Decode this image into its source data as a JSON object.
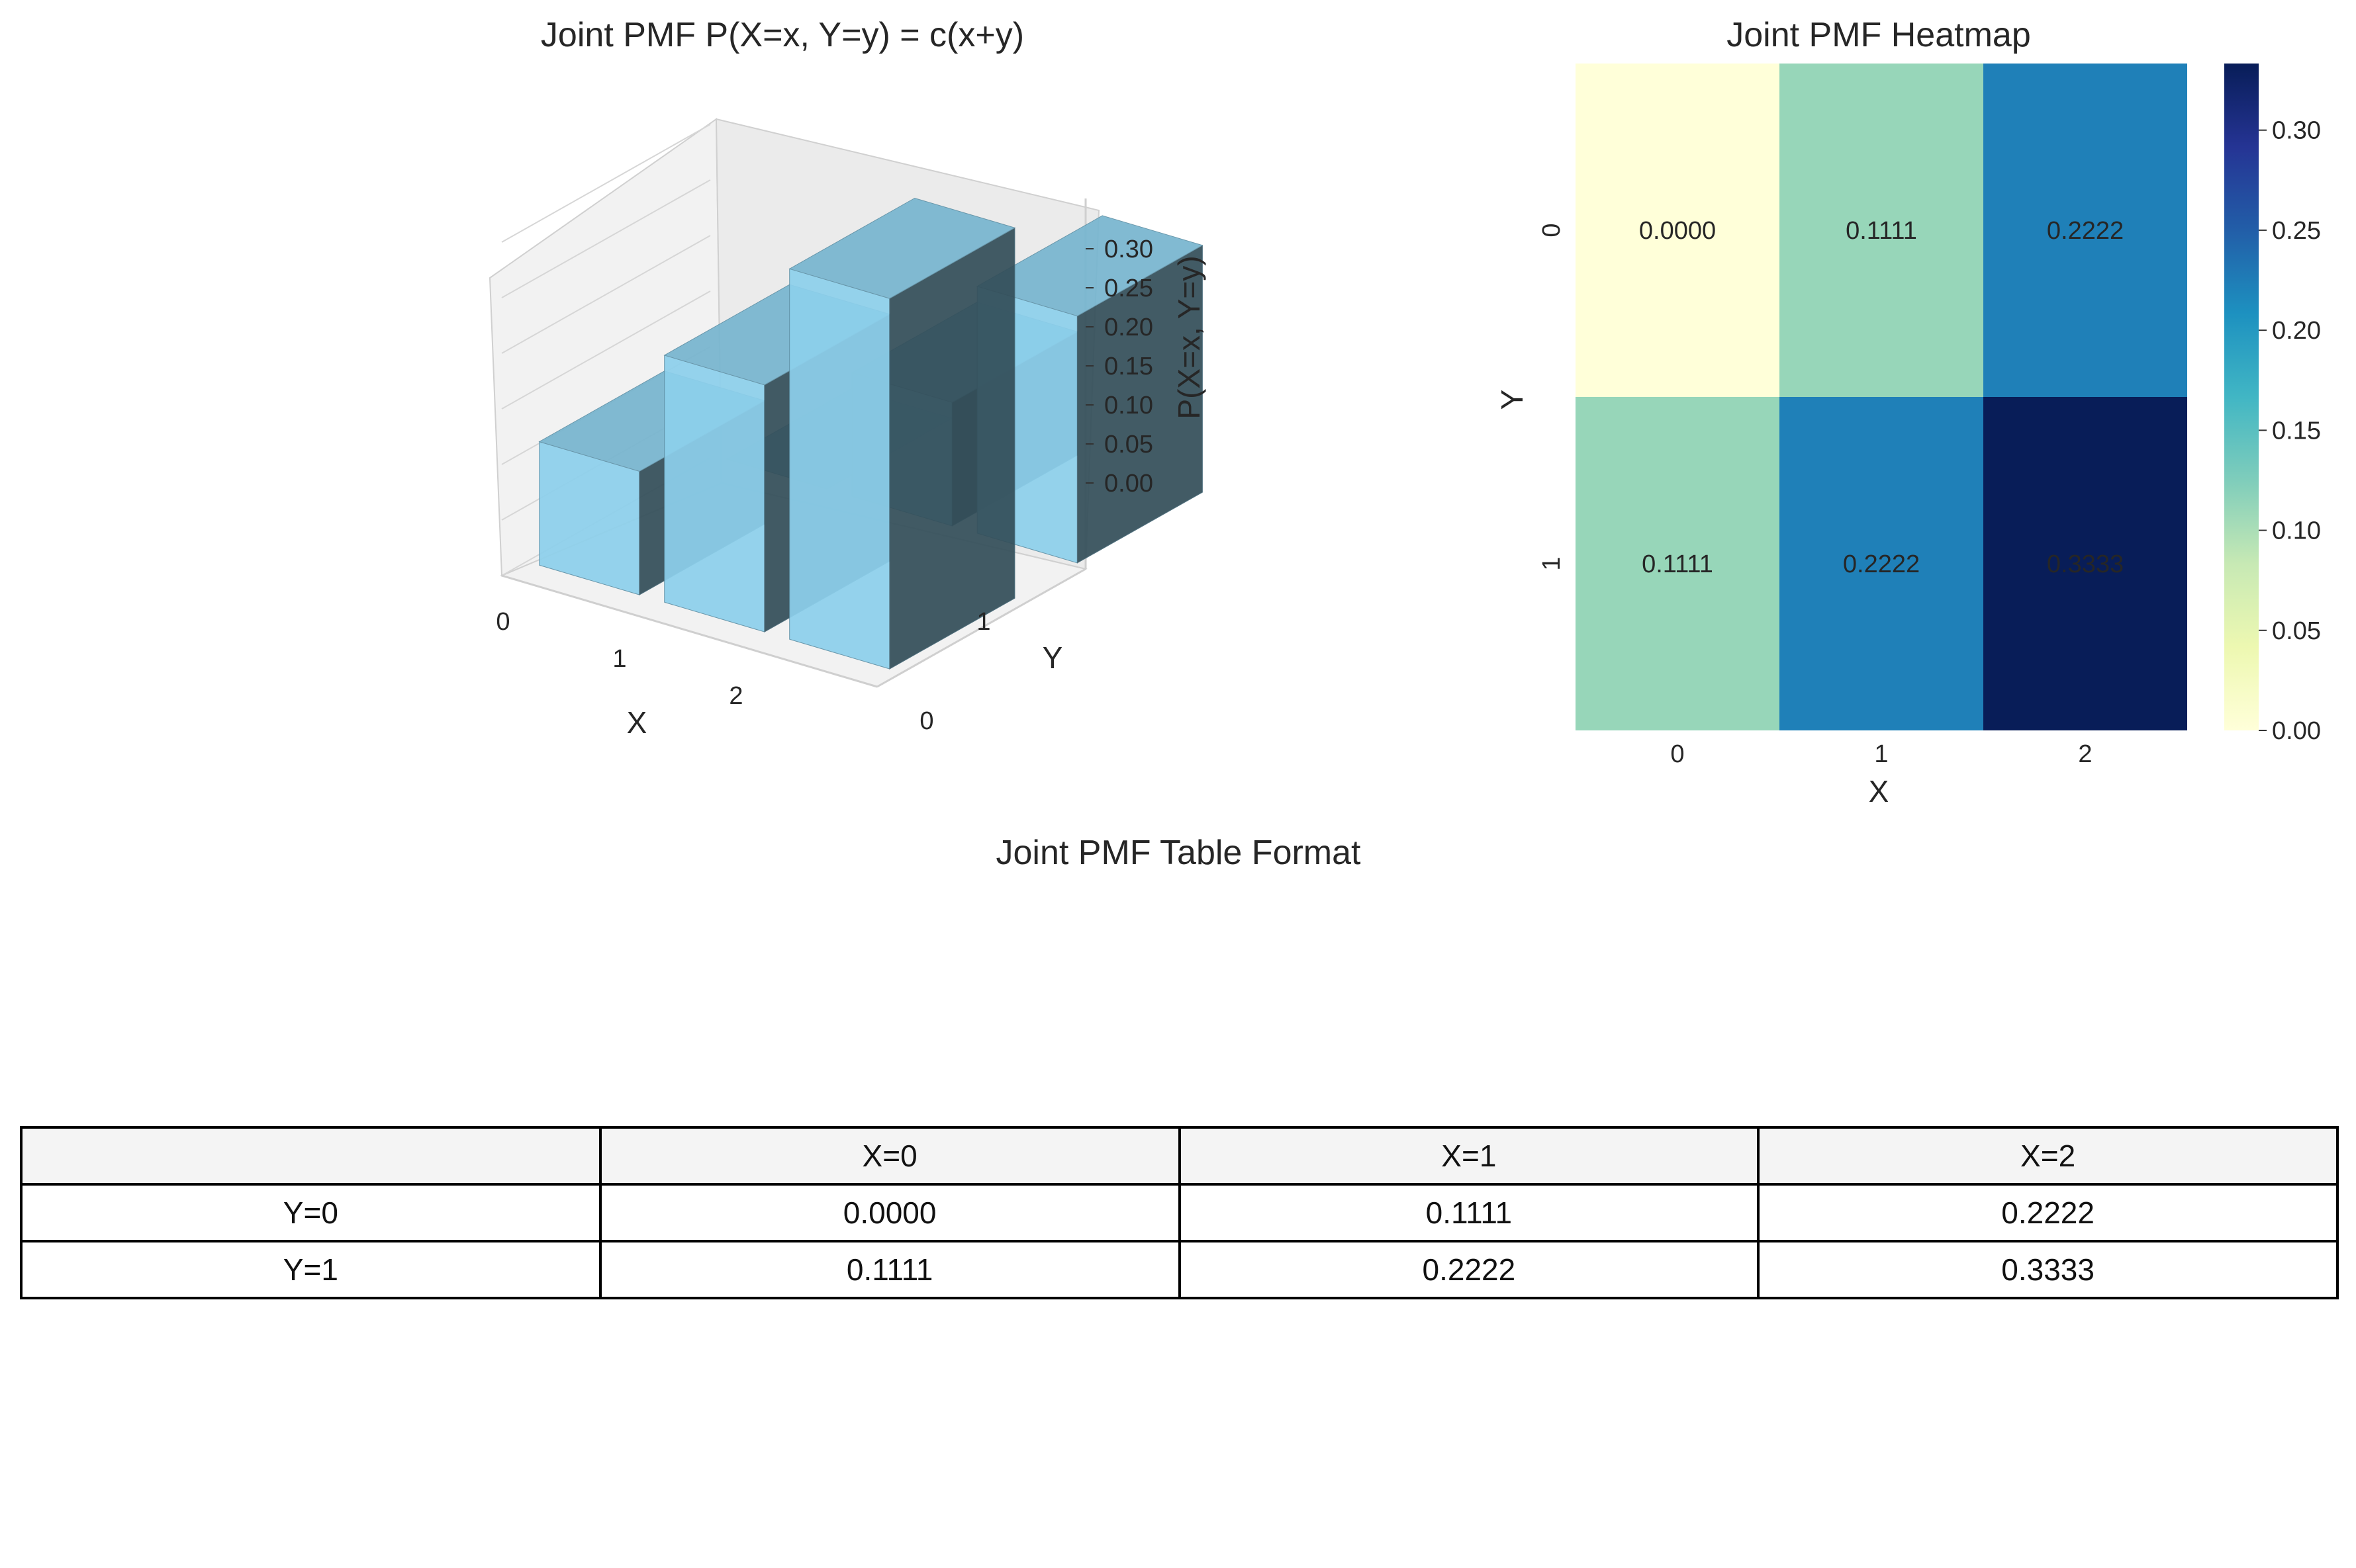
{
  "chart_data": [
    {
      "type": "bar3d",
      "title": "Joint PMF P(X=x, Y=y) = c(x+y)",
      "xlabel": "X",
      "ylabel": "Y",
      "zlabel": "P(X=x, Y=y)",
      "x_ticks": [
        "0",
        "1",
        "2"
      ],
      "y_ticks": [
        "0",
        "1"
      ],
      "z_ticks": [
        "0.00",
        "0.05",
        "0.10",
        "0.15",
        "0.20",
        "0.25",
        "0.30"
      ],
      "zlim": [
        0,
        0.333
      ],
      "bars": [
        {
          "x": 0,
          "y": 0,
          "z": 0.0
        },
        {
          "x": 1,
          "y": 0,
          "z": 0.1111
        },
        {
          "x": 2,
          "y": 0,
          "z": 0.2222
        },
        {
          "x": 0,
          "y": 1,
          "z": 0.1111
        },
        {
          "x": 1,
          "y": 1,
          "z": 0.2222
        },
        {
          "x": 2,
          "y": 1,
          "z": 0.3333
        }
      ],
      "bar_color": "#87CEEB"
    },
    {
      "type": "heatmap",
      "title": "Joint PMF Heatmap",
      "xlabel": "X",
      "ylabel": "Y",
      "x_ticks": [
        "0",
        "1",
        "2"
      ],
      "y_ticks": [
        "0",
        "1"
      ],
      "values": [
        [
          0.0,
          0.1111,
          0.2222
        ],
        [
          0.1111,
          0.2222,
          0.3333
        ]
      ],
      "annotations": [
        [
          "0.0000",
          "0.1111",
          "0.2222"
        ],
        [
          "0.1111",
          "0.2222",
          "0.3333"
        ]
      ],
      "colormap": "YlGnBu",
      "colorbar_range": [
        0,
        0.3333
      ],
      "colorbar_ticks": [
        "0.00",
        "0.05",
        "0.10",
        "0.15",
        "0.20",
        "0.25",
        "0.30"
      ]
    },
    {
      "type": "table",
      "title": "Joint PMF Table Format",
      "columns": [
        "",
        "X=0",
        "X=1",
        "X=2"
      ],
      "rows": [
        [
          "Y=0",
          "0.0000",
          "0.1111",
          "0.2222"
        ],
        [
          "Y=1",
          "0.1111",
          "0.2222",
          "0.3333"
        ]
      ]
    }
  ]
}
